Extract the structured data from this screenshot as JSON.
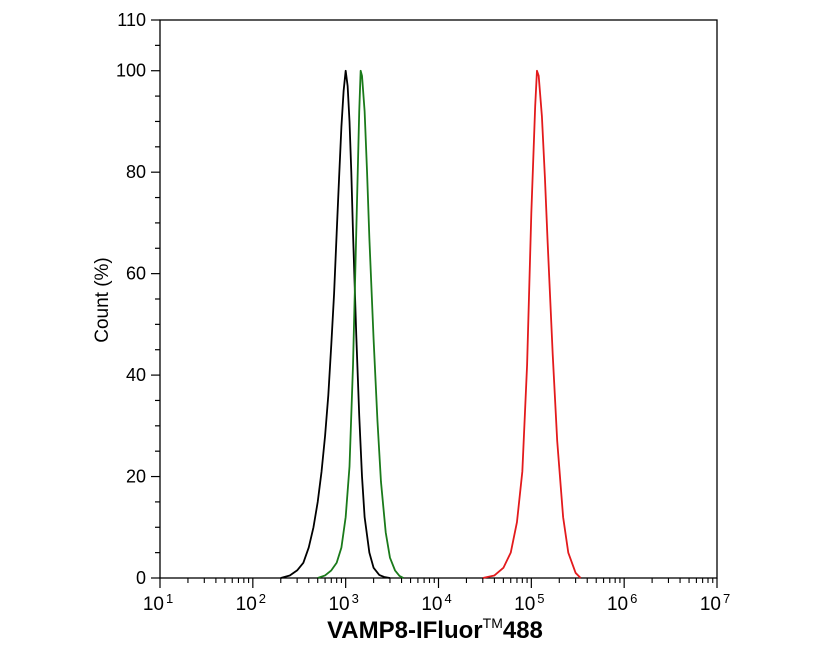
{
  "chart_data": {
    "type": "line",
    "title": "",
    "xlabel": "VAMP8-IFluor",
    "xlabel_superscript": "TM",
    "xlabel_suffix": "488",
    "ylabel": "Count  (%)",
    "xscale": "log",
    "xlim": [
      10,
      10000000
    ],
    "ylim": [
      0,
      110
    ],
    "x_ticks": [
      {
        "base": "10",
        "exp": "1",
        "value": 10
      },
      {
        "base": "10",
        "exp": "2",
        "value": 100
      },
      {
        "base": "10",
        "exp": "3",
        "value": 1000
      },
      {
        "base": "10",
        "exp": "4",
        "value": 10000
      },
      {
        "base": "10",
        "exp": "5",
        "value": 100000
      },
      {
        "base": "10",
        "exp": "6",
        "value": 1000000
      },
      {
        "base": "10",
        "exp": "7",
        "value": 10000000
      }
    ],
    "y_ticks": [
      "0",
      "20",
      "40",
      "60",
      "80",
      "100",
      "110"
    ],
    "grid": false,
    "legend": "none",
    "series": [
      {
        "color": "#000000",
        "x": [
          200,
          250,
          300,
          350,
          400,
          450,
          500,
          550,
          600,
          650,
          700,
          750,
          800,
          850,
          900,
          950,
          1000,
          1050,
          1100,
          1150,
          1200,
          1300,
          1400,
          1500,
          1600,
          1800,
          2000,
          2300,
          2600,
          3000
        ],
        "y": [
          0,
          0.5,
          1.5,
          3,
          6,
          10,
          15,
          21,
          28,
          36,
          46,
          56,
          68,
          79,
          89,
          96,
          100,
          97,
          90,
          80,
          68,
          48,
          32,
          20,
          12,
          5,
          2,
          0.6,
          0.2,
          0
        ]
      },
      {
        "color": "#1a7a1a",
        "x": [
          500,
          600,
          700,
          800,
          900,
          1000,
          1100,
          1200,
          1300,
          1400,
          1450,
          1500,
          1600,
          1700,
          1800,
          2000,
          2200,
          2400,
          2700,
          3000,
          3400,
          3800,
          4200
        ],
        "y": [
          0,
          0.5,
          1.5,
          3,
          6,
          12,
          22,
          42,
          68,
          92,
          100,
          99,
          92,
          80,
          67,
          47,
          31,
          19,
          9,
          4,
          1.5,
          0.4,
          0
        ]
      },
      {
        "color": "#e31a1c",
        "x": [
          30000,
          40000,
          50000,
          60000,
          70000,
          80000,
          90000,
          100000,
          110000,
          115000,
          120000,
          130000,
          140000,
          150000,
          170000,
          190000,
          220000,
          250000,
          300000,
          340000
        ],
        "y": [
          0,
          0.5,
          2,
          5,
          11,
          21,
          42,
          72,
          93,
          100,
          99,
          91,
          79,
          66,
          44,
          27,
          12,
          5,
          1,
          0
        ]
      }
    ]
  }
}
